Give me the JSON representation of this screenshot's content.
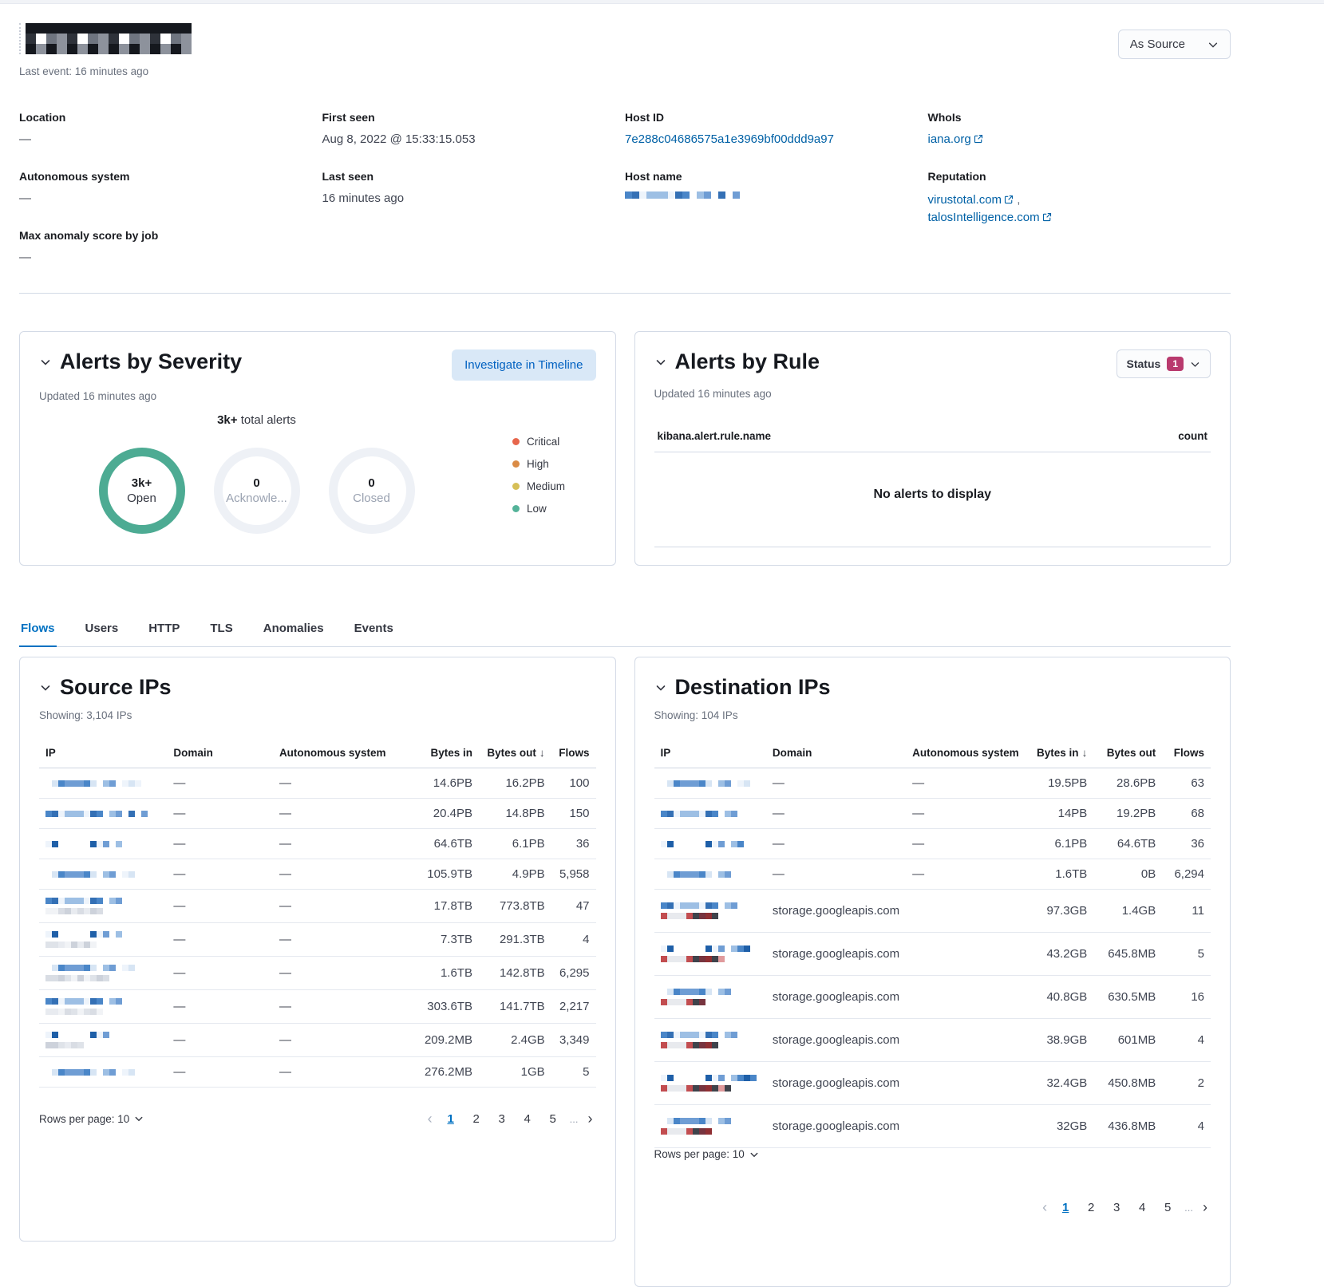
{
  "header": {
    "ip_redacted": true,
    "last_event": "Last event: 16 minutes ago",
    "view_selector": "As Source"
  },
  "overview": {
    "location_label": "Location",
    "location_value": "—",
    "autonomous_system_label": "Autonomous system",
    "autonomous_system_value": "—",
    "max_anomaly_label": "Max anomaly score by job",
    "max_anomaly_value": "—",
    "first_seen_label": "First seen",
    "first_seen_value": "Aug 8, 2022 @ 15:33:15.053",
    "last_seen_label": "Last seen",
    "last_seen_value": "16 minutes ago",
    "host_id_label": "Host ID",
    "host_id_value": "7e288c04686575a1e3969bf00ddd9a97",
    "host_name_label": "Host name",
    "host_name_redacted": true,
    "whois_label": "WhoIs",
    "whois_value": "iana.org",
    "reputation_label": "Reputation",
    "reputation_link_1": "virustotal.com",
    "reputation_separator": ",",
    "reputation_link_2": "talosIntelligence.com"
  },
  "severity_panel": {
    "title": "Alerts by Severity",
    "investigate_button": "Investigate in Timeline",
    "updated": "Updated 16 minutes ago",
    "total_bold": "3k+",
    "total_rest": " total alerts",
    "donuts": [
      {
        "value": "3k+",
        "label": "Open",
        "active": true
      },
      {
        "value": "0",
        "label": "Acknowle...",
        "active": false
      },
      {
        "value": "0",
        "label": "Closed",
        "active": false
      }
    ],
    "ring_active_color": "#4dab93",
    "legend": [
      {
        "label": "Critical",
        "color": "#e7664c"
      },
      {
        "label": "High",
        "color": "#da8b45"
      },
      {
        "label": "Medium",
        "color": "#d6bf57"
      },
      {
        "label": "Low",
        "color": "#54b399"
      }
    ]
  },
  "rule_panel": {
    "title": "Alerts by Rule",
    "status_label": "Status",
    "status_count": "1",
    "updated": "Updated 16 minutes ago",
    "column_name": "kibana.alert.rule.name",
    "column_count": "count",
    "empty_message": "No alerts to display"
  },
  "tabs": [
    {
      "label": "Flows",
      "active": true
    },
    {
      "label": "Users",
      "active": false
    },
    {
      "label": "HTTP",
      "active": false
    },
    {
      "label": "TLS",
      "active": false
    },
    {
      "label": "Anomalies",
      "active": false
    },
    {
      "label": "Events",
      "active": false
    }
  ],
  "source_ips": {
    "title": "Source IPs",
    "showing": "Showing: 3,104 IPs",
    "columns": {
      "ip": "IP",
      "domain": "Domain",
      "as": "Autonomous system",
      "bytes_in": "Bytes in",
      "bytes_out": "Bytes out",
      "flows": "Flows"
    },
    "sorted_column": "bytes_out",
    "sort_arrow": "↓",
    "rows": [
      {
        "ip_redacted": true,
        "ip_len": 15,
        "ip_lines": [
          "blue"
        ],
        "domain": "—",
        "as": "—",
        "bytes_in": "14.6PB",
        "bytes_out": "16.2PB",
        "flows": "100"
      },
      {
        "ip_redacted": true,
        "ip_len": 16,
        "ip_lines": [
          "blue"
        ],
        "domain": "—",
        "as": "—",
        "bytes_in": "20.4PB",
        "bytes_out": "14.8PB",
        "flows": "150"
      },
      {
        "ip_redacted": true,
        "ip_len": 12,
        "ip_lines": [
          "blue"
        ],
        "domain": "—",
        "as": "—",
        "bytes_in": "64.6TB",
        "bytes_out": "6.1PB",
        "flows": "36"
      },
      {
        "ip_redacted": true,
        "ip_len": 14,
        "ip_lines": [
          "blue"
        ],
        "domain": "—",
        "as": "—",
        "bytes_in": "105.9TB",
        "bytes_out": "4.9PB",
        "flows": "5,958"
      },
      {
        "ip_redacted": true,
        "ip_len": 13,
        "ip_lines": [
          "blue",
          "gray"
        ],
        "domain": "—",
        "as": "—",
        "bytes_in": "17.8TB",
        "bytes_out": "773.8TB",
        "flows": "47"
      },
      {
        "ip_redacted": true,
        "ip_len": 12,
        "ip_lines": [
          "blue",
          "gray"
        ],
        "domain": "—",
        "as": "—",
        "bytes_in": "7.3TB",
        "bytes_out": "291.3TB",
        "flows": "4"
      },
      {
        "ip_redacted": true,
        "ip_len": 14,
        "ip_lines": [
          "blue",
          "gray"
        ],
        "domain": "—",
        "as": "—",
        "bytes_in": "1.6TB",
        "bytes_out": "142.8TB",
        "flows": "6,295"
      },
      {
        "ip_redacted": true,
        "ip_len": 13,
        "ip_lines": [
          "blue",
          "gray"
        ],
        "domain": "—",
        "as": "—",
        "bytes_in": "303.6TB",
        "bytes_out": "141.7TB",
        "flows": "2,217"
      },
      {
        "ip_redacted": true,
        "ip_len": 10,
        "ip_lines": [
          "blue",
          "gray"
        ],
        "domain": "—",
        "as": "—",
        "bytes_in": "209.2MB",
        "bytes_out": "2.4GB",
        "flows": "3,349"
      },
      {
        "ip_redacted": true,
        "ip_len": 14,
        "ip_lines": [
          "blue"
        ],
        "domain": "—",
        "as": "—",
        "bytes_in": "276.2MB",
        "bytes_out": "1GB",
        "flows": "5"
      }
    ],
    "rows_per_page": "Rows per page: 10",
    "pages": [
      "1",
      "2",
      "3",
      "4",
      "5"
    ],
    "active_page": "1",
    "ellipsis": "..."
  },
  "destination_ips": {
    "title": "Destination IPs",
    "showing": "Showing: 104 IPs",
    "columns": {
      "ip": "IP",
      "domain": "Domain",
      "as": "Autonomous system",
      "bytes_in": "Bytes in",
      "bytes_out": "Bytes out",
      "flows": "Flows"
    },
    "sorted_column": "bytes_in",
    "sort_arrow": "↓",
    "rows": [
      {
        "ip_redacted": true,
        "ip_len": 14,
        "ip_lines": [
          "blue"
        ],
        "domain": "—",
        "as": "—",
        "bytes_in": "19.5PB",
        "bytes_out": "28.6PB",
        "flows": "63"
      },
      {
        "ip_redacted": true,
        "ip_len": 12,
        "ip_lines": [
          "blue"
        ],
        "domain": "—",
        "as": "—",
        "bytes_in": "14PB",
        "bytes_out": "19.2PB",
        "flows": "68"
      },
      {
        "ip_redacted": true,
        "ip_len": 13,
        "ip_lines": [
          "blue"
        ],
        "domain": "—",
        "as": "—",
        "bytes_in": "6.1PB",
        "bytes_out": "64.6TB",
        "flows": "36"
      },
      {
        "ip_redacted": true,
        "ip_len": 12,
        "ip_lines": [
          "blue"
        ],
        "domain": "—",
        "as": "—",
        "bytes_in": "1.6TB",
        "bytes_out": "0B",
        "flows": "6,294"
      },
      {
        "ip_redacted": true,
        "ip_len": 13,
        "ip_lines": [
          "blue",
          "red"
        ],
        "domain": "storage.googleapis.com",
        "as": "",
        "bytes_in": "97.3GB",
        "bytes_out": "1.4GB",
        "flows": "11"
      },
      {
        "ip_redacted": true,
        "ip_len": 14,
        "ip_lines": [
          "blue",
          "red"
        ],
        "domain": "storage.googleapis.com",
        "as": "",
        "bytes_in": "43.2GB",
        "bytes_out": "645.8MB",
        "flows": "5"
      },
      {
        "ip_redacted": true,
        "ip_len": 11,
        "ip_lines": [
          "blue",
          "red"
        ],
        "domain": "storage.googleapis.com",
        "as": "",
        "bytes_in": "40.8GB",
        "bytes_out": "630.5MB",
        "flows": "16"
      },
      {
        "ip_redacted": true,
        "ip_len": 13,
        "ip_lines": [
          "blue",
          "red"
        ],
        "domain": "storage.googleapis.com",
        "as": "",
        "bytes_in": "38.9GB",
        "bytes_out": "601MB",
        "flows": "4"
      },
      {
        "ip_redacted": true,
        "ip_len": 15,
        "ip_lines": [
          "blue",
          "red"
        ],
        "domain": "storage.googleapis.com",
        "as": "",
        "bytes_in": "32.4GB",
        "bytes_out": "450.8MB",
        "flows": "2"
      },
      {
        "ip_redacted": true,
        "ip_len": 12,
        "ip_lines": [
          "blue",
          "red"
        ],
        "domain": "storage.googleapis.com",
        "as": "",
        "bytes_in": "32GB",
        "bytes_out": "436.8MB",
        "flows": "4"
      }
    ],
    "rows_per_page": "Rows per page: 10",
    "pages": [
      "1",
      "2",
      "3",
      "4",
      "5"
    ],
    "active_page": "1",
    "ellipsis": "..."
  }
}
